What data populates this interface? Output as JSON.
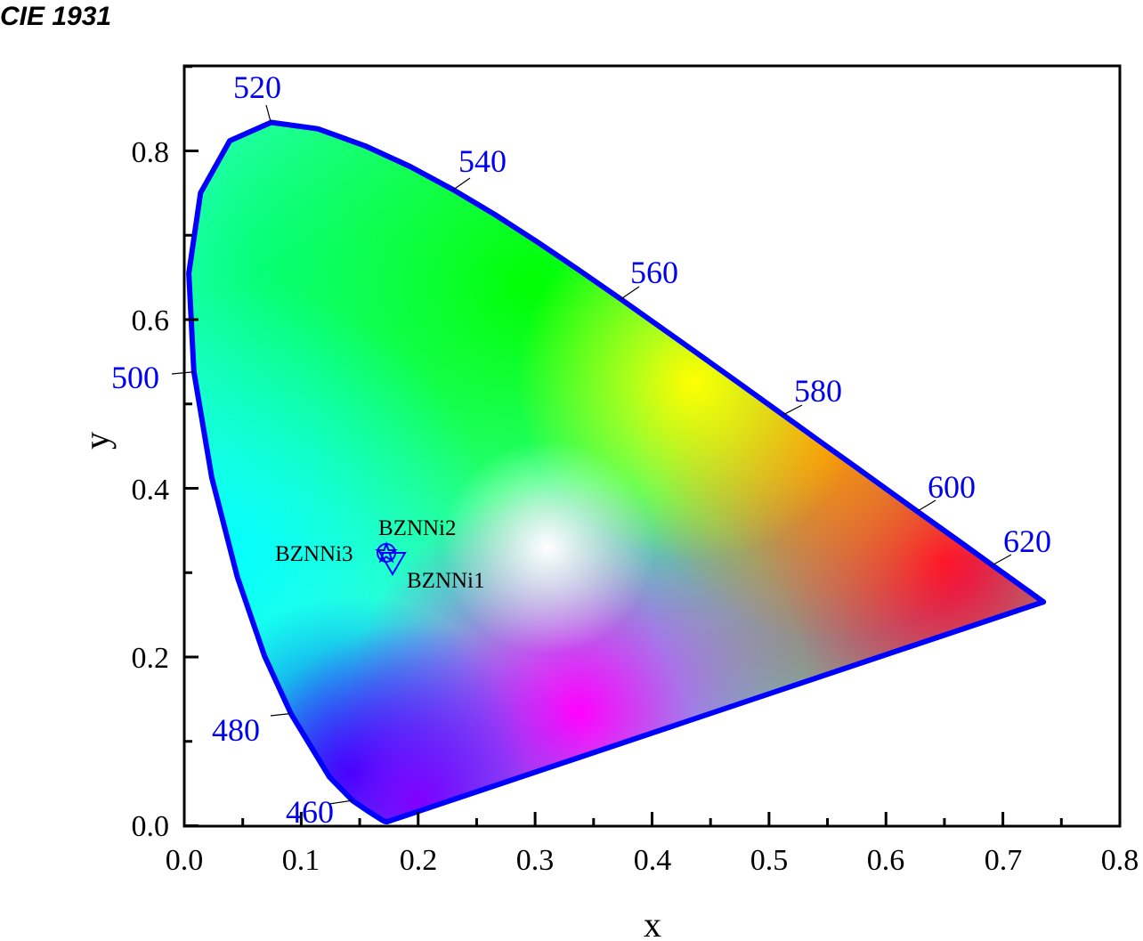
{
  "title": "CIE 1931",
  "chart_data": {
    "type": "scatter",
    "title": "CIE 1931",
    "xlabel": "x",
    "ylabel": "y",
    "xlim": [
      0.0,
      0.8
    ],
    "ylim": [
      0.0,
      0.9
    ],
    "x_ticks": [
      "0.0",
      "0.1",
      "0.2",
      "0.3",
      "0.4",
      "0.5",
      "0.6",
      "0.7",
      "0.8"
    ],
    "y_ticks": [
      "0.0",
      "0.2",
      "0.4",
      "0.6",
      "0.8"
    ],
    "grid": false,
    "legend": "none",
    "locus_color": "#0000ff",
    "wavelength_labels": [
      {
        "label": "460",
        "x": 0.144,
        "y": 0.03
      },
      {
        "label": "480",
        "x": 0.091,
        "y": 0.133
      },
      {
        "label": "500",
        "x": 0.008,
        "y": 0.538
      },
      {
        "label": "520",
        "x": 0.074,
        "y": 0.834
      },
      {
        "label": "540",
        "x": 0.23,
        "y": 0.754
      },
      {
        "label": "560",
        "x": 0.373,
        "y": 0.624
      },
      {
        "label": "580",
        "x": 0.512,
        "y": 0.487
      },
      {
        "label": "600",
        "x": 0.627,
        "y": 0.373
      },
      {
        "label": "620",
        "x": 0.691,
        "y": 0.309
      }
    ],
    "series": [
      {
        "name": "BZNNi1",
        "marker": "triangle-down",
        "x": 0.177,
        "y": 0.313
      },
      {
        "name": "BZNNi2",
        "marker": "circle",
        "x": 0.173,
        "y": 0.322
      },
      {
        "name": "BZNNi3",
        "marker": "star",
        "x": 0.174,
        "y": 0.321
      }
    ]
  }
}
